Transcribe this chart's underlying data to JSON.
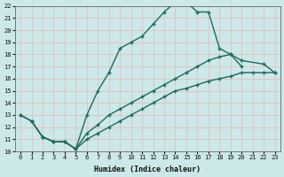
{
  "xlabel": "Humidex (Indice chaleur)",
  "bg_color": "#cce8e8",
  "grid_color": "#b0d8d8",
  "line_color": "#1a6b60",
  "xlim": [
    -0.5,
    23.5
  ],
  "ylim": [
    10,
    22
  ],
  "xticks": [
    0,
    1,
    2,
    3,
    4,
    5,
    6,
    7,
    8,
    9,
    10,
    11,
    12,
    13,
    14,
    15,
    16,
    17,
    18,
    19,
    20,
    21,
    22,
    23
  ],
  "yticks": [
    10,
    11,
    12,
    13,
    14,
    15,
    16,
    17,
    18,
    19,
    20,
    21,
    22
  ],
  "line1_x": [
    0,
    1,
    2,
    3,
    4,
    5,
    6,
    7,
    8,
    9,
    10,
    11,
    12,
    13,
    14,
    15,
    16,
    17,
    18,
    19,
    20
  ],
  "line1_y": [
    13,
    12.5,
    11.2,
    10.8,
    10.8,
    10.2,
    13.0,
    15.0,
    16.5,
    18.5,
    19.0,
    19.5,
    20.5,
    21.5,
    22.3,
    22.3,
    21.5,
    21.5,
    18.5,
    18.0,
    17.0
  ],
  "line2_x": [
    0,
    1,
    2,
    3,
    4,
    5,
    6,
    7,
    8,
    9,
    10,
    11,
    12,
    13,
    14,
    15,
    16,
    17,
    18,
    19,
    20,
    22,
    23
  ],
  "line2_y": [
    13,
    12.5,
    11.2,
    10.8,
    10.8,
    10.2,
    11.5,
    12.2,
    13.0,
    13.5,
    14.0,
    14.5,
    15.0,
    15.5,
    16.0,
    16.5,
    17.0,
    17.5,
    17.8,
    18.0,
    17.5,
    17.2,
    16.5
  ],
  "line3_x": [
    1,
    2,
    3,
    4,
    5,
    6,
    7,
    8,
    9,
    10,
    11,
    12,
    13,
    14,
    15,
    16,
    17,
    18,
    19,
    20,
    21,
    22,
    23
  ],
  "line3_y": [
    12.5,
    11.2,
    10.8,
    10.8,
    10.2,
    11.0,
    11.5,
    12.0,
    12.5,
    13.0,
    13.5,
    14.0,
    14.5,
    15.0,
    15.2,
    15.5,
    15.8,
    16.0,
    16.2,
    16.5,
    16.5,
    16.5,
    16.5
  ]
}
